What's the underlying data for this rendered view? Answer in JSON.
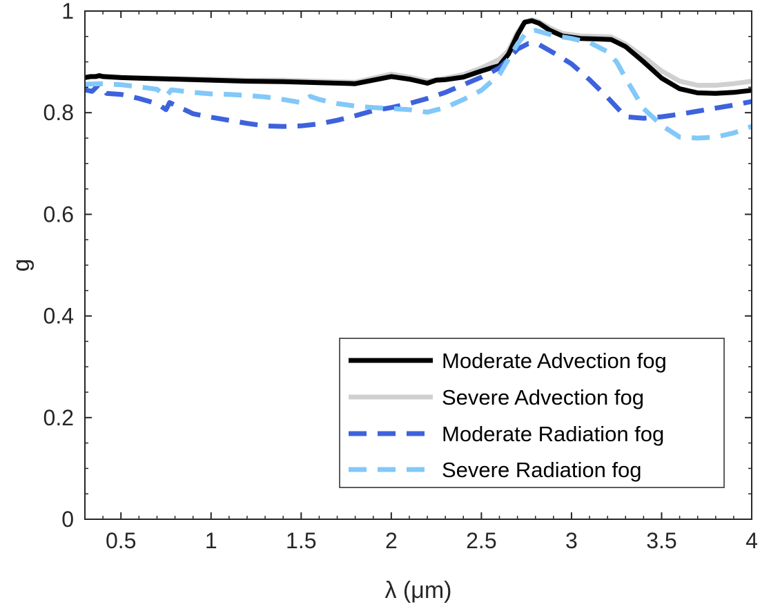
{
  "chart_data": {
    "type": "line",
    "title": "",
    "xlabel": "λ (μm)",
    "ylabel": "g",
    "xlim": [
      0.3,
      4
    ],
    "ylim": [
      0,
      1
    ],
    "xticks": [
      0.5,
      1,
      1.5,
      2,
      2.5,
      3,
      3.5,
      4
    ],
    "xtick_labels": [
      "0.5",
      "1",
      "1.5",
      "2",
      "2.5",
      "3",
      "3.5",
      "4"
    ],
    "yticks": [
      0,
      0.2,
      0.4,
      0.6,
      0.8,
      1
    ],
    "ytick_labels": [
      "0",
      "0.2",
      "0.4",
      "0.6",
      "0.8",
      "1"
    ],
    "grid": false,
    "legend_position": "bottom-right",
    "series": [
      {
        "name": "Moderate Advection fog",
        "color": "#000000",
        "style": "solid",
        "points": [
          [
            0.3,
            0.869
          ],
          [
            0.33,
            0.871
          ],
          [
            0.36,
            0.871
          ],
          [
            0.38,
            0.873
          ],
          [
            0.4,
            0.871
          ],
          [
            0.5,
            0.869
          ],
          [
            0.6,
            0.868
          ],
          [
            0.8,
            0.866
          ],
          [
            1.0,
            0.864
          ],
          [
            1.2,
            0.862
          ],
          [
            1.4,
            0.861
          ],
          [
            1.6,
            0.859
          ],
          [
            1.8,
            0.857
          ],
          [
            1.9,
            0.864
          ],
          [
            2.0,
            0.871
          ],
          [
            2.1,
            0.866
          ],
          [
            2.2,
            0.858
          ],
          [
            2.25,
            0.864
          ],
          [
            2.3,
            0.865
          ],
          [
            2.4,
            0.87
          ],
          [
            2.5,
            0.882
          ],
          [
            2.6,
            0.893
          ],
          [
            2.65,
            0.915
          ],
          [
            2.7,
            0.953
          ],
          [
            2.74,
            0.978
          ],
          [
            2.78,
            0.981
          ],
          [
            2.82,
            0.976
          ],
          [
            2.88,
            0.962
          ],
          [
            2.95,
            0.951
          ],
          [
            3.05,
            0.946
          ],
          [
            3.15,
            0.945
          ],
          [
            3.22,
            0.944
          ],
          [
            3.3,
            0.93
          ],
          [
            3.4,
            0.9
          ],
          [
            3.5,
            0.868
          ],
          [
            3.6,
            0.847
          ],
          [
            3.7,
            0.839
          ],
          [
            3.8,
            0.838
          ],
          [
            3.9,
            0.84
          ],
          [
            4.0,
            0.844
          ]
        ]
      },
      {
        "name": "Severe Advection fog",
        "color": "#d0d0d0",
        "style": "solid",
        "points": [
          [
            0.3,
            0.87
          ],
          [
            0.4,
            0.872
          ],
          [
            0.5,
            0.87
          ],
          [
            0.6,
            0.869
          ],
          [
            0.8,
            0.867
          ],
          [
            1.0,
            0.866
          ],
          [
            1.2,
            0.864
          ],
          [
            1.4,
            0.864
          ],
          [
            1.6,
            0.862
          ],
          [
            1.8,
            0.86
          ],
          [
            1.9,
            0.868
          ],
          [
            2.0,
            0.876
          ],
          [
            2.1,
            0.87
          ],
          [
            2.2,
            0.862
          ],
          [
            2.3,
            0.868
          ],
          [
            2.4,
            0.875
          ],
          [
            2.5,
            0.888
          ],
          [
            2.6,
            0.905
          ],
          [
            2.65,
            0.922
          ],
          [
            2.7,
            0.958
          ],
          [
            2.74,
            0.978
          ],
          [
            2.78,
            0.983
          ],
          [
            2.82,
            0.979
          ],
          [
            2.88,
            0.967
          ],
          [
            2.95,
            0.956
          ],
          [
            3.05,
            0.951
          ],
          [
            3.15,
            0.95
          ],
          [
            3.22,
            0.949
          ],
          [
            3.3,
            0.935
          ],
          [
            3.4,
            0.91
          ],
          [
            3.5,
            0.882
          ],
          [
            3.6,
            0.862
          ],
          [
            3.7,
            0.854
          ],
          [
            3.8,
            0.854
          ],
          [
            3.9,
            0.857
          ],
          [
            4.0,
            0.862
          ]
        ]
      },
      {
        "name": "Moderate Radiation fog",
        "color": "#3d62dc",
        "style": "dashed",
        "points": [
          [
            0.3,
            0.845
          ],
          [
            0.34,
            0.842
          ],
          [
            0.36,
            0.849
          ],
          [
            0.38,
            0.857
          ],
          [
            0.42,
            0.838
          ],
          [
            0.5,
            0.836
          ],
          [
            0.6,
            0.828
          ],
          [
            0.7,
            0.818
          ],
          [
            0.75,
            0.806
          ],
          [
            0.77,
            0.82
          ],
          [
            0.9,
            0.798
          ],
          [
            1.0,
            0.791
          ],
          [
            1.1,
            0.785
          ],
          [
            1.2,
            0.779
          ],
          [
            1.3,
            0.774
          ],
          [
            1.4,
            0.773
          ],
          [
            1.5,
            0.774
          ],
          [
            1.6,
            0.778
          ],
          [
            1.7,
            0.785
          ],
          [
            1.8,
            0.794
          ],
          [
            1.9,
            0.804
          ],
          [
            2.0,
            0.81
          ],
          [
            2.1,
            0.818
          ],
          [
            2.2,
            0.828
          ],
          [
            2.3,
            0.84
          ],
          [
            2.4,
            0.855
          ],
          [
            2.5,
            0.87
          ],
          [
            2.6,
            0.888
          ],
          [
            2.65,
            0.905
          ],
          [
            2.7,
            0.925
          ],
          [
            2.76,
            0.936
          ],
          [
            2.82,
            0.934
          ],
          [
            2.9,
            0.918
          ],
          [
            3.0,
            0.896
          ],
          [
            3.1,
            0.865
          ],
          [
            3.2,
            0.83
          ],
          [
            3.3,
            0.792
          ],
          [
            3.4,
            0.789
          ],
          [
            3.5,
            0.792
          ],
          [
            3.6,
            0.797
          ],
          [
            3.7,
            0.803
          ],
          [
            3.8,
            0.809
          ],
          [
            3.9,
            0.815
          ],
          [
            4.0,
            0.822
          ]
        ]
      },
      {
        "name": "Severe Radiation fog",
        "color": "#82c8f8",
        "style": "dashed",
        "points": [
          [
            0.3,
            0.856
          ],
          [
            0.4,
            0.857
          ],
          [
            0.5,
            0.855
          ],
          [
            0.6,
            0.851
          ],
          [
            0.7,
            0.846
          ],
          [
            0.75,
            0.832
          ],
          [
            0.78,
            0.845
          ],
          [
            0.9,
            0.84
          ],
          [
            1.0,
            0.837
          ],
          [
            1.1,
            0.836
          ],
          [
            1.2,
            0.834
          ],
          [
            1.3,
            0.831
          ],
          [
            1.4,
            0.826
          ],
          [
            1.5,
            0.82
          ],
          [
            1.55,
            0.832
          ],
          [
            1.6,
            0.826
          ],
          [
            1.7,
            0.818
          ],
          [
            1.8,
            0.813
          ],
          [
            1.9,
            0.81
          ],
          [
            2.0,
            0.808
          ],
          [
            2.1,
            0.806
          ],
          [
            2.2,
            0.801
          ],
          [
            2.3,
            0.81
          ],
          [
            2.4,
            0.826
          ],
          [
            2.5,
            0.844
          ],
          [
            2.6,
            0.875
          ],
          [
            2.65,
            0.905
          ],
          [
            2.7,
            0.935
          ],
          [
            2.75,
            0.958
          ],
          [
            2.8,
            0.962
          ],
          [
            2.9,
            0.952
          ],
          [
            3.0,
            0.946
          ],
          [
            3.1,
            0.938
          ],
          [
            3.2,
            0.92
          ],
          [
            3.25,
            0.9
          ],
          [
            3.3,
            0.868
          ],
          [
            3.4,
            0.808
          ],
          [
            3.5,
            0.775
          ],
          [
            3.6,
            0.752
          ],
          [
            3.7,
            0.75
          ],
          [
            3.8,
            0.752
          ],
          [
            3.9,
            0.76
          ],
          [
            4.0,
            0.773
          ]
        ]
      }
    ]
  }
}
